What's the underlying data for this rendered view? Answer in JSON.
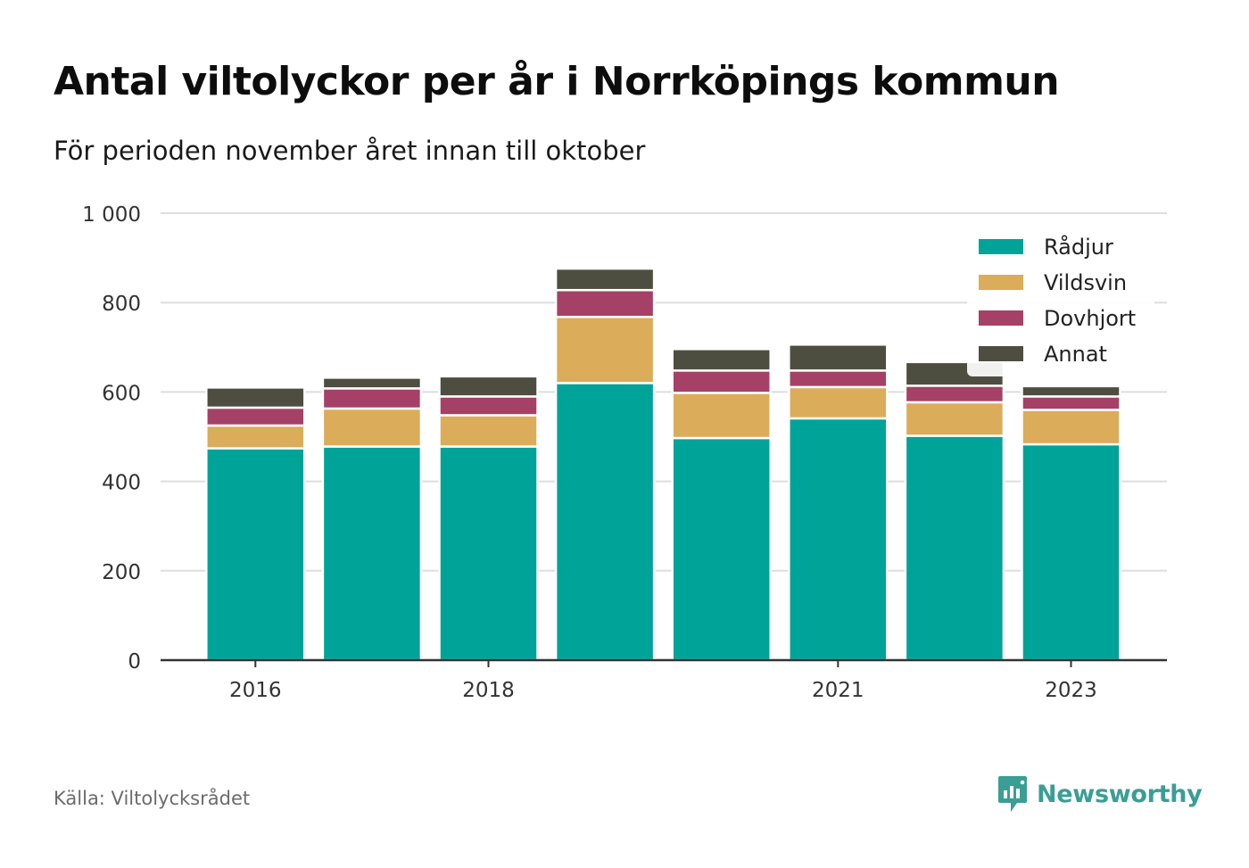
{
  "title": "Antal viltolyckor per år i Norrköpings kommun",
  "subtitle": "För perioden november året innan till oktober",
  "source": "Källa: Viltolycksrådet",
  "brand": {
    "name": "Newsworthy",
    "icon": "newsworthy-logo-icon",
    "color": "#3a9e95"
  },
  "chart_data": {
    "type": "bar",
    "stacked": true,
    "x": [
      2016,
      2017,
      2018,
      2019,
      2020,
      2021,
      2022,
      2023
    ],
    "x_tick_labels": [
      "2016",
      "2018",
      "2021",
      "2023"
    ],
    "x_tick_values": [
      2016,
      2018,
      2021,
      2023
    ],
    "y_ticks": [
      0,
      200,
      400,
      600,
      800,
      1000
    ],
    "y_tick_labels": [
      "0",
      "200",
      "400",
      "600",
      "800",
      "1 000"
    ],
    "ylim": [
      0,
      1000
    ],
    "grid": true,
    "legend_position": "top-right",
    "series": [
      {
        "name": "Rådjur",
        "color": "#00a398",
        "values": [
          474,
          478,
          478,
          620,
          497,
          541,
          502,
          483
        ]
      },
      {
        "name": "Vildsvin",
        "color": "#dbac5a",
        "values": [
          51,
          85,
          70,
          148,
          101,
          70,
          75,
          77
        ]
      },
      {
        "name": "Dovhjort",
        "color": "#a54166",
        "values": [
          40,
          45,
          42,
          60,
          50,
          37,
          37,
          30
        ]
      },
      {
        "name": "Annat",
        "color": "#4d4e3f",
        "values": [
          45,
          24,
          45,
          48,
          48,
          58,
          53,
          23
        ]
      }
    ]
  }
}
